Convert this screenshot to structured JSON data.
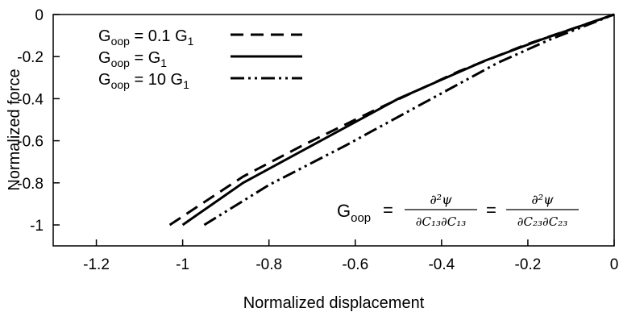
{
  "chart_data": {
    "type": "line",
    "xlabel": "Normalized displacement",
    "ylabel": "Normalized force",
    "xlim": [
      -1.3,
      0
    ],
    "ylim": [
      -1.1,
      0
    ],
    "x_ticks": [
      -1.2,
      -1,
      -0.8,
      -0.6,
      -0.4,
      -0.2,
      0
    ],
    "x_tick_labels": [
      "-1.2",
      "-1",
      "-0.8",
      "-0.6",
      "-0.4",
      "-0.2",
      "0"
    ],
    "y_ticks": [
      0,
      -0.2,
      -0.4,
      -0.6,
      -0.8,
      -1
    ],
    "y_tick_labels": [
      "0",
      "-0.2",
      "-0.4",
      "-0.6",
      "-0.8",
      "-1"
    ],
    "grid": false,
    "legend_position": "top-left",
    "series": [
      {
        "name": "G_oop = 0.1 G_1",
        "label_main": "G",
        "label_sub": "oop",
        "label_rest": " = 0.1 G",
        "label_sub2": "1",
        "style": "dashed",
        "color": "#000000",
        "x": [
          -1.03,
          -0.86,
          -0.72,
          -0.55,
          -0.36,
          -0.2,
          0
        ],
        "y": [
          -1.0,
          -0.77,
          -0.62,
          -0.45,
          -0.27,
          -0.14,
          0
        ]
      },
      {
        "name": "G_oop = G_1",
        "label_main": "G",
        "label_sub": "oop",
        "label_rest": " = G",
        "label_sub2": "1",
        "style": "solid",
        "color": "#000000",
        "x": [
          -1.0,
          -0.86,
          -0.68,
          -0.5,
          -0.3,
          -0.17,
          0
        ],
        "y": [
          -1.0,
          -0.8,
          -0.6,
          -0.4,
          -0.22,
          -0.12,
          0
        ]
      },
      {
        "name": "G_oop = 10 G_1",
        "label_main": "G",
        "label_sub": "oop",
        "label_rest": " = 10 G",
        "label_sub2": "1",
        "style": "dashdotdot",
        "color": "#000000",
        "x": [
          -0.95,
          -0.8,
          -0.62,
          -0.45,
          -0.27,
          -0.15,
          0
        ],
        "y": [
          -1.0,
          -0.81,
          -0.62,
          -0.43,
          -0.23,
          -0.12,
          0
        ]
      }
    ],
    "annotation": {
      "g_main": "G",
      "g_sub": "oop",
      "eq1": "=",
      "eq2": "=",
      "num1": "∂²ψ",
      "den1": "∂C₁₃∂C₁₃",
      "num2": "∂²ψ",
      "den2": "∂C₂₃∂C₂₃"
    }
  }
}
